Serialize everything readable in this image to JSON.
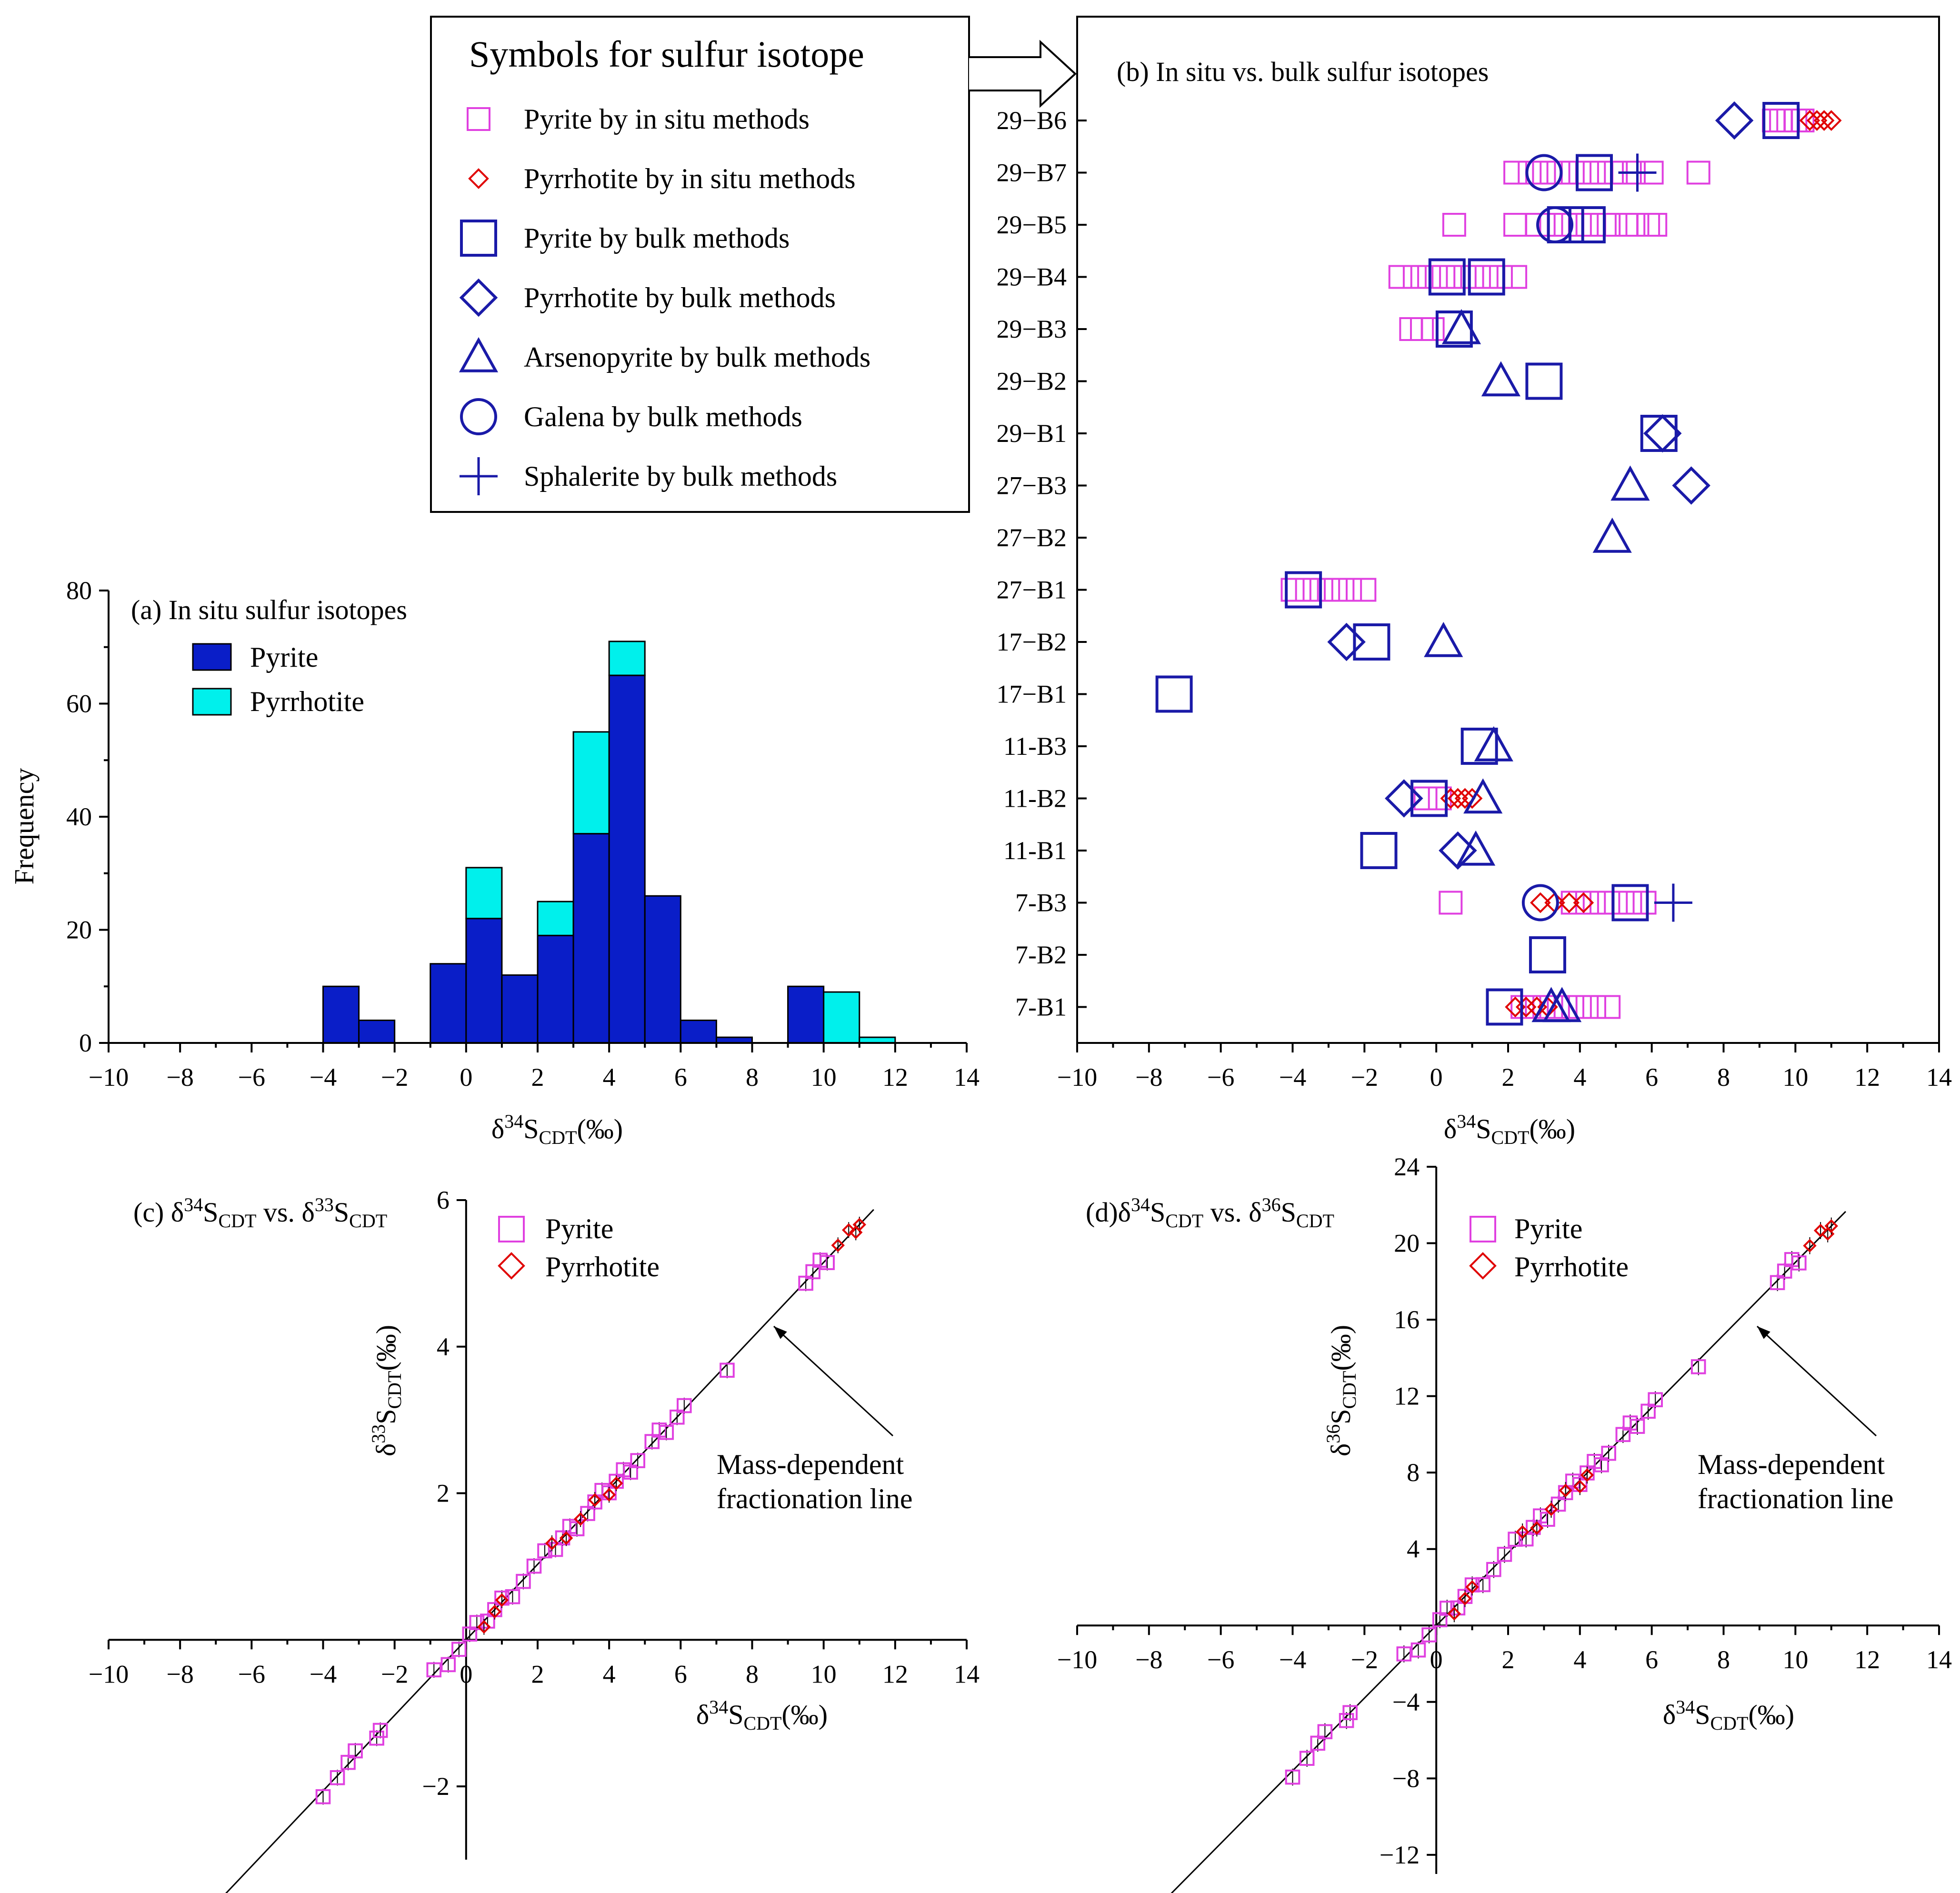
{
  "colors": {
    "pyrite_insitu": "#e040e0",
    "pyrrhotite_insitu": "#e00000",
    "bulk": "#1a1aa8",
    "hist_pyrite": "#0a1ec8",
    "hist_pyrrhotite": "#00f0ec",
    "error_bar": "#000000"
  },
  "legend_main": {
    "title": "Symbols for sulfur isotope",
    "items": [
      {
        "label": "Pyrite by in situ methods",
        "symbol": "square-small"
      },
      {
        "label": "Pyrrhotite by in situ methods",
        "symbol": "diamond-small"
      },
      {
        "label": "Pyrite by bulk methods",
        "symbol": "square"
      },
      {
        "label": "Pyrrhotite by bulk methods",
        "symbol": "diamond"
      },
      {
        "label": "Arsenopyrite by bulk methods",
        "symbol": "triangle"
      },
      {
        "label": "Galena by bulk methods",
        "symbol": "circle"
      },
      {
        "label": "Sphalerite by bulk methods",
        "symbol": "plus"
      }
    ]
  },
  "chart_data": [
    {
      "id": "a",
      "type": "bar",
      "stacked": true,
      "title": "(a) In situ sulfur isotopes",
      "xlabel": "δ34SCDT(‰)",
      "ylabel": "Frequency",
      "xlim": [
        -10,
        14
      ],
      "ylim": [
        0,
        80
      ],
      "xticks": [
        -10,
        -8,
        -6,
        -4,
        -2,
        0,
        2,
        4,
        6,
        8,
        10,
        12,
        14
      ],
      "yticks": [
        0,
        20,
        40,
        60,
        80
      ],
      "bin_width": 1,
      "bin_starts": [
        -4,
        -3,
        -1,
        0,
        1,
        2,
        3,
        4,
        5,
        6,
        7,
        9,
        10,
        11
      ],
      "series": [
        {
          "name": "Pyrite",
          "values": [
            10,
            4,
            14,
            22,
            12,
            19,
            37,
            65,
            26,
            4,
            1,
            10,
            0,
            0
          ]
        },
        {
          "name": "Pyrrhotite",
          "values": [
            0,
            0,
            0,
            9,
            0,
            6,
            18,
            6,
            0,
            0,
            0,
            0,
            9,
            1
          ]
        }
      ],
      "legend_position": "top-left"
    },
    {
      "id": "b",
      "type": "scatter",
      "title": "(b) In situ vs. bulk sulfur isotopes",
      "xlabel": "δ34SCDT(‰)",
      "xlim": [
        -10,
        14
      ],
      "xticks": [
        -10,
        -8,
        -6,
        -4,
        -2,
        0,
        2,
        4,
        6,
        8,
        10,
        12,
        14
      ],
      "categories": [
        "29−B6",
        "29−B7",
        "29−B5",
        "29−B4",
        "29−B3",
        "29−B2",
        "29−B1",
        "27−B3",
        "27−B2",
        "27−B1",
        "17−B2",
        "17−B1",
        "11-B3",
        "11-B2",
        "11-B1",
        "7-B3",
        "7-B2",
        "7-B1"
      ],
      "series": [
        {
          "name": "Pyrite by in situ methods",
          "symbol": "square-small",
          "points": [
            [
              9.4,
              "29−B6"
            ],
            [
              9.6,
              "29−B6"
            ],
            [
              9.8,
              "29−B6"
            ],
            [
              10.0,
              "29−B6"
            ],
            [
              10.2,
              "29−B6"
            ],
            [
              2.2,
              "29−B7"
            ],
            [
              2.6,
              "29−B7"
            ],
            [
              3.0,
              "29−B7"
            ],
            [
              3.4,
              "29−B7"
            ],
            [
              3.8,
              "29−B7"
            ],
            [
              4.2,
              "29−B7"
            ],
            [
              4.6,
              "29−B7"
            ],
            [
              5.0,
              "29−B7"
            ],
            [
              5.5,
              "29−B7"
            ],
            [
              6.0,
              "29−B7"
            ],
            [
              7.3,
              "29−B7"
            ],
            [
              0.5,
              "29−B5"
            ],
            [
              2.2,
              "29−B5"
            ],
            [
              2.8,
              "29−B5"
            ],
            [
              3.2,
              "29−B5"
            ],
            [
              3.6,
              "29−B5"
            ],
            [
              4.0,
              "29−B5"
            ],
            [
              4.4,
              "29−B5"
            ],
            [
              4.8,
              "29−B5"
            ],
            [
              5.3,
              "29−B5"
            ],
            [
              5.6,
              "29−B5"
            ],
            [
              5.9,
              "29−B5"
            ],
            [
              6.1,
              "29−B5"
            ],
            [
              -1.0,
              "29−B4"
            ],
            [
              -0.6,
              "29−B4"
            ],
            [
              -0.2,
              "29−B4"
            ],
            [
              0.2,
              "29−B4"
            ],
            [
              0.6,
              "29−B4"
            ],
            [
              1.0,
              "29−B4"
            ],
            [
              1.4,
              "29−B4"
            ],
            [
              1.8,
              "29−B4"
            ],
            [
              2.2,
              "29−B4"
            ],
            [
              -0.7,
              "29−B3"
            ],
            [
              -0.4,
              "29−B3"
            ],
            [
              -0.1,
              "29−B3"
            ],
            [
              -4.0,
              "27−B1"
            ],
            [
              -3.6,
              "27−B1"
            ],
            [
              -3.2,
              "27−B1"
            ],
            [
              -2.8,
              "27−B1"
            ],
            [
              -2.4,
              "27−B1"
            ],
            [
              -2.0,
              "27−B1"
            ],
            [
              -0.3,
              "11-B2"
            ],
            [
              0.1,
              "11-B2"
            ],
            [
              0.4,
              "7-B3"
            ],
            [
              3.8,
              "7-B3"
            ],
            [
              4.2,
              "7-B3"
            ],
            [
              4.6,
              "7-B3"
            ],
            [
              5.0,
              "7-B3"
            ],
            [
              5.4,
              "7-B3"
            ],
            [
              5.8,
              "7-B3"
            ],
            [
              2.4,
              "7-B1"
            ],
            [
              2.8,
              "7-B1"
            ],
            [
              3.2,
              "7-B1"
            ],
            [
              3.6,
              "7-B1"
            ],
            [
              4.0,
              "7-B1"
            ],
            [
              4.4,
              "7-B1"
            ],
            [
              4.8,
              "7-B1"
            ]
          ]
        },
        {
          "name": "Pyrrhotite by in situ methods",
          "symbol": "diamond-small",
          "points": [
            [
              10.4,
              "29−B6"
            ],
            [
              10.6,
              "29−B6"
            ],
            [
              10.8,
              "29−B6"
            ],
            [
              11.0,
              "29−B6"
            ],
            [
              0.4,
              "11-B2"
            ],
            [
              0.6,
              "11-B2"
            ],
            [
              0.8,
              "11-B2"
            ],
            [
              1.0,
              "11-B2"
            ],
            [
              2.9,
              "7-B3"
            ],
            [
              3.3,
              "7-B3"
            ],
            [
              3.7,
              "7-B3"
            ],
            [
              4.1,
              "7-B3"
            ],
            [
              2.2,
              "7-B1"
            ],
            [
              2.5,
              "7-B1"
            ],
            [
              2.8,
              "7-B1"
            ],
            [
              3.1,
              "7-B1"
            ]
          ]
        },
        {
          "name": "Pyrite by bulk methods",
          "symbol": "square",
          "points": [
            [
              9.6,
              "29−B6"
            ],
            [
              4.4,
              "29−B7"
            ],
            [
              3.6,
              "29−B5"
            ],
            [
              4.2,
              "29−B5"
            ],
            [
              0.3,
              "29−B4"
            ],
            [
              1.4,
              "29−B4"
            ],
            [
              0.5,
              "29−B3"
            ],
            [
              3.0,
              "29−B2"
            ],
            [
              6.2,
              "29−B1"
            ],
            [
              -3.7,
              "27−B1"
            ],
            [
              -1.8,
              "17−B2"
            ],
            [
              -7.3,
              "17−B1"
            ],
            [
              1.2,
              "11-B3"
            ],
            [
              -0.2,
              "11-B2"
            ],
            [
              -1.6,
              "11-B1"
            ],
            [
              5.4,
              "7-B3"
            ],
            [
              3.1,
              "7-B2"
            ],
            [
              1.9,
              "7-B1"
            ]
          ]
        },
        {
          "name": "Pyrrhotite by bulk methods",
          "symbol": "diamond",
          "points": [
            [
              8.3,
              "29−B6"
            ],
            [
              6.3,
              "29−B1"
            ],
            [
              7.1,
              "27−B3"
            ],
            [
              -2.5,
              "17−B2"
            ],
            [
              -0.9,
              "11-B2"
            ],
            [
              0.6,
              "11-B1"
            ]
          ]
        },
        {
          "name": "Arsenopyrite by bulk methods",
          "symbol": "triangle",
          "points": [
            [
              0.7,
              "29−B3"
            ],
            [
              1.8,
              "29−B2"
            ],
            [
              5.4,
              "27−B3"
            ],
            [
              4.9,
              "27−B2"
            ],
            [
              0.2,
              "17−B2"
            ],
            [
              1.6,
              "11-B3"
            ],
            [
              1.3,
              "11-B2"
            ],
            [
              1.1,
              "11-B1"
            ],
            [
              3.2,
              "7-B1"
            ],
            [
              3.5,
              "7-B1"
            ]
          ]
        },
        {
          "name": "Galena by bulk methods",
          "symbol": "circle",
          "points": [
            [
              3.0,
              "29−B7"
            ],
            [
              3.3,
              "29−B5"
            ],
            [
              2.9,
              "7-B3"
            ]
          ]
        },
        {
          "name": "Sphalerite by bulk methods",
          "symbol": "plus",
          "points": [
            [
              5.6,
              "29−B7"
            ],
            [
              6.6,
              "7-B3"
            ]
          ]
        }
      ]
    },
    {
      "id": "c",
      "type": "scatter",
      "title": "(c) δ34SCDT vs. δ33SCDT",
      "xlabel": "δ34SCDT(‰)",
      "ylabel": "δ33SCDT(‰)",
      "xlim": [
        -10,
        14
      ],
      "ylim": [
        -3,
        6
      ],
      "xticks": [
        -10,
        -8,
        -6,
        -4,
        -2,
        0,
        2,
        4,
        6,
        8,
        10,
        12,
        14
      ],
      "yticks": [
        -2,
        2,
        4,
        6
      ],
      "line_slope": 0.515,
      "annotation": "Mass-dependent fractionation line",
      "series": [
        {
          "name": "Pyrite",
          "symbol": "square-small",
          "x": [
            -4.0,
            -3.6,
            -3.3,
            -3.1,
            -2.5,
            -2.4,
            -0.9,
            -0.5,
            -0.2,
            0.1,
            0.3,
            0.6,
            0.8,
            1.0,
            1.3,
            1.6,
            1.9,
            2.2,
            2.5,
            2.7,
            2.9,
            3.1,
            3.4,
            3.6,
            3.8,
            4.0,
            4.2,
            4.4,
            4.6,
            4.8,
            5.2,
            5.4,
            5.6,
            5.9,
            6.1,
            7.3,
            9.5,
            9.7,
            9.9,
            10.1
          ]
        },
        {
          "name": "Pyrrhotite",
          "symbol": "diamond-small",
          "x": [
            0.5,
            0.8,
            1.0,
            2.4,
            2.8,
            3.2,
            3.6,
            4.0,
            4.2,
            10.4,
            10.7,
            10.9,
            11.0
          ]
        }
      ]
    },
    {
      "id": "d",
      "type": "scatter",
      "title": "(d)δ34SCDT vs. δ36SCDT",
      "xlabel": "δ34SCDT(‰)",
      "ylabel": "δ36SCDT(‰)",
      "xlim": [
        -10,
        14
      ],
      "ylim": [
        -13,
        24
      ],
      "xticks": [
        -10,
        -8,
        -6,
        -4,
        -2,
        0,
        2,
        4,
        6,
        8,
        10,
        12,
        14
      ],
      "yticks": [
        -12,
        -8,
        -4,
        4,
        8,
        12,
        16,
        20,
        24
      ],
      "line_slope": 1.9,
      "annotation": "Mass-dependent fractionation line",
      "series": [
        {
          "name": "Pyrite",
          "symbol": "square-small",
          "x": [
            -4.0,
            -3.6,
            -3.3,
            -3.1,
            -2.5,
            -2.4,
            -0.9,
            -0.5,
            -0.2,
            0.1,
            0.3,
            0.6,
            0.8,
            1.0,
            1.3,
            1.6,
            1.9,
            2.2,
            2.5,
            2.7,
            2.9,
            3.1,
            3.4,
            3.6,
            3.8,
            4.0,
            4.2,
            4.4,
            4.6,
            4.8,
            5.2,
            5.4,
            5.6,
            5.9,
            6.1,
            7.3,
            9.5,
            9.7,
            9.9,
            10.1
          ]
        },
        {
          "name": "Pyrrhotite",
          "symbol": "diamond-small",
          "x": [
            0.5,
            0.8,
            1.0,
            2.4,
            2.8,
            3.2,
            3.6,
            4.0,
            4.2,
            10.4,
            10.7,
            10.9,
            11.0
          ]
        }
      ]
    }
  ]
}
